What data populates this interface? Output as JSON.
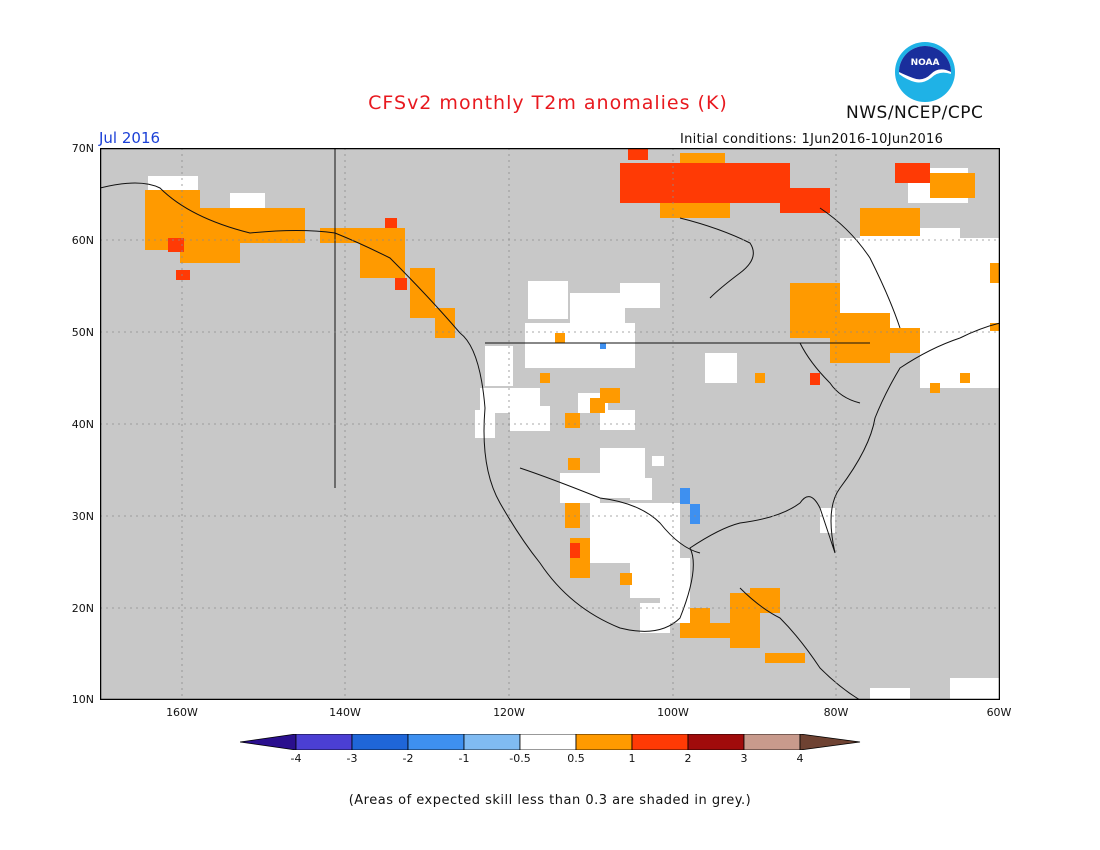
{
  "header": {
    "title": "CFSv2 monthly T2m anomalies (K)",
    "agency": "NWS/NCEP/CPC",
    "logo_text": "NOAA",
    "month": "Jul 2016",
    "initial_conditions": "Initial conditions: 1Jun2016-10Jun2016"
  },
  "map": {
    "background_color": "#c8c8c8",
    "lat_labels": [
      "70N",
      "60N",
      "50N",
      "40N",
      "30N",
      "20N",
      "10N"
    ],
    "lon_labels": [
      "160W",
      "140W",
      "120W",
      "100W",
      "80W",
      "60W"
    ],
    "extent": {
      "lon_min": -170,
      "lon_max": -60,
      "lat_min": 10,
      "lat_max": 70
    }
  },
  "colorbar": {
    "labels": [
      "-4",
      "-3",
      "-2",
      "-1",
      "-0.5",
      "0.5",
      "1",
      "2",
      "3",
      "4"
    ],
    "colors": [
      "#2a0f8e",
      "#4b3fd3",
      "#1f66d8",
      "#3e90f0",
      "#80bbf2",
      "#ffffff",
      "#ff9a00",
      "#ff3a05",
      "#a00b0b",
      "#c89a8c",
      "#6e4232"
    ]
  },
  "footnote": "(Areas of expected skill less than 0.3 are shaded in grey.)"
}
